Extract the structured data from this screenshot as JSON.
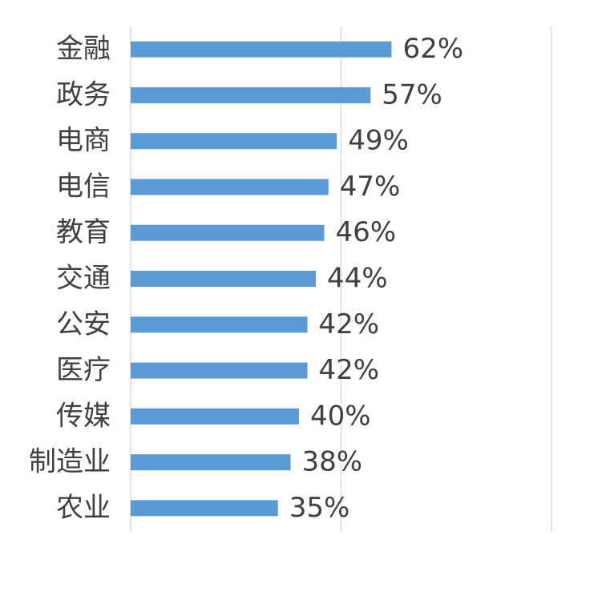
{
  "chart_data": {
    "type": "bar",
    "orientation": "horizontal",
    "categories": [
      "金融",
      "政务",
      "电商",
      "电信",
      "教育",
      "交通",
      "公安",
      "医疗",
      "传媒",
      "制造业",
      "农业"
    ],
    "values": [
      62,
      57,
      49,
      47,
      46,
      44,
      42,
      42,
      40,
      38,
      35
    ],
    "value_labels": [
      "62%",
      "57%",
      "49%",
      "47%",
      "46%",
      "44%",
      "42%",
      "42%",
      "40%",
      "38%",
      "35%"
    ],
    "color": "#5b9bd5",
    "xlim": [
      0,
      100
    ],
    "xticks": [
      0,
      50,
      100
    ],
    "grid": true
  }
}
